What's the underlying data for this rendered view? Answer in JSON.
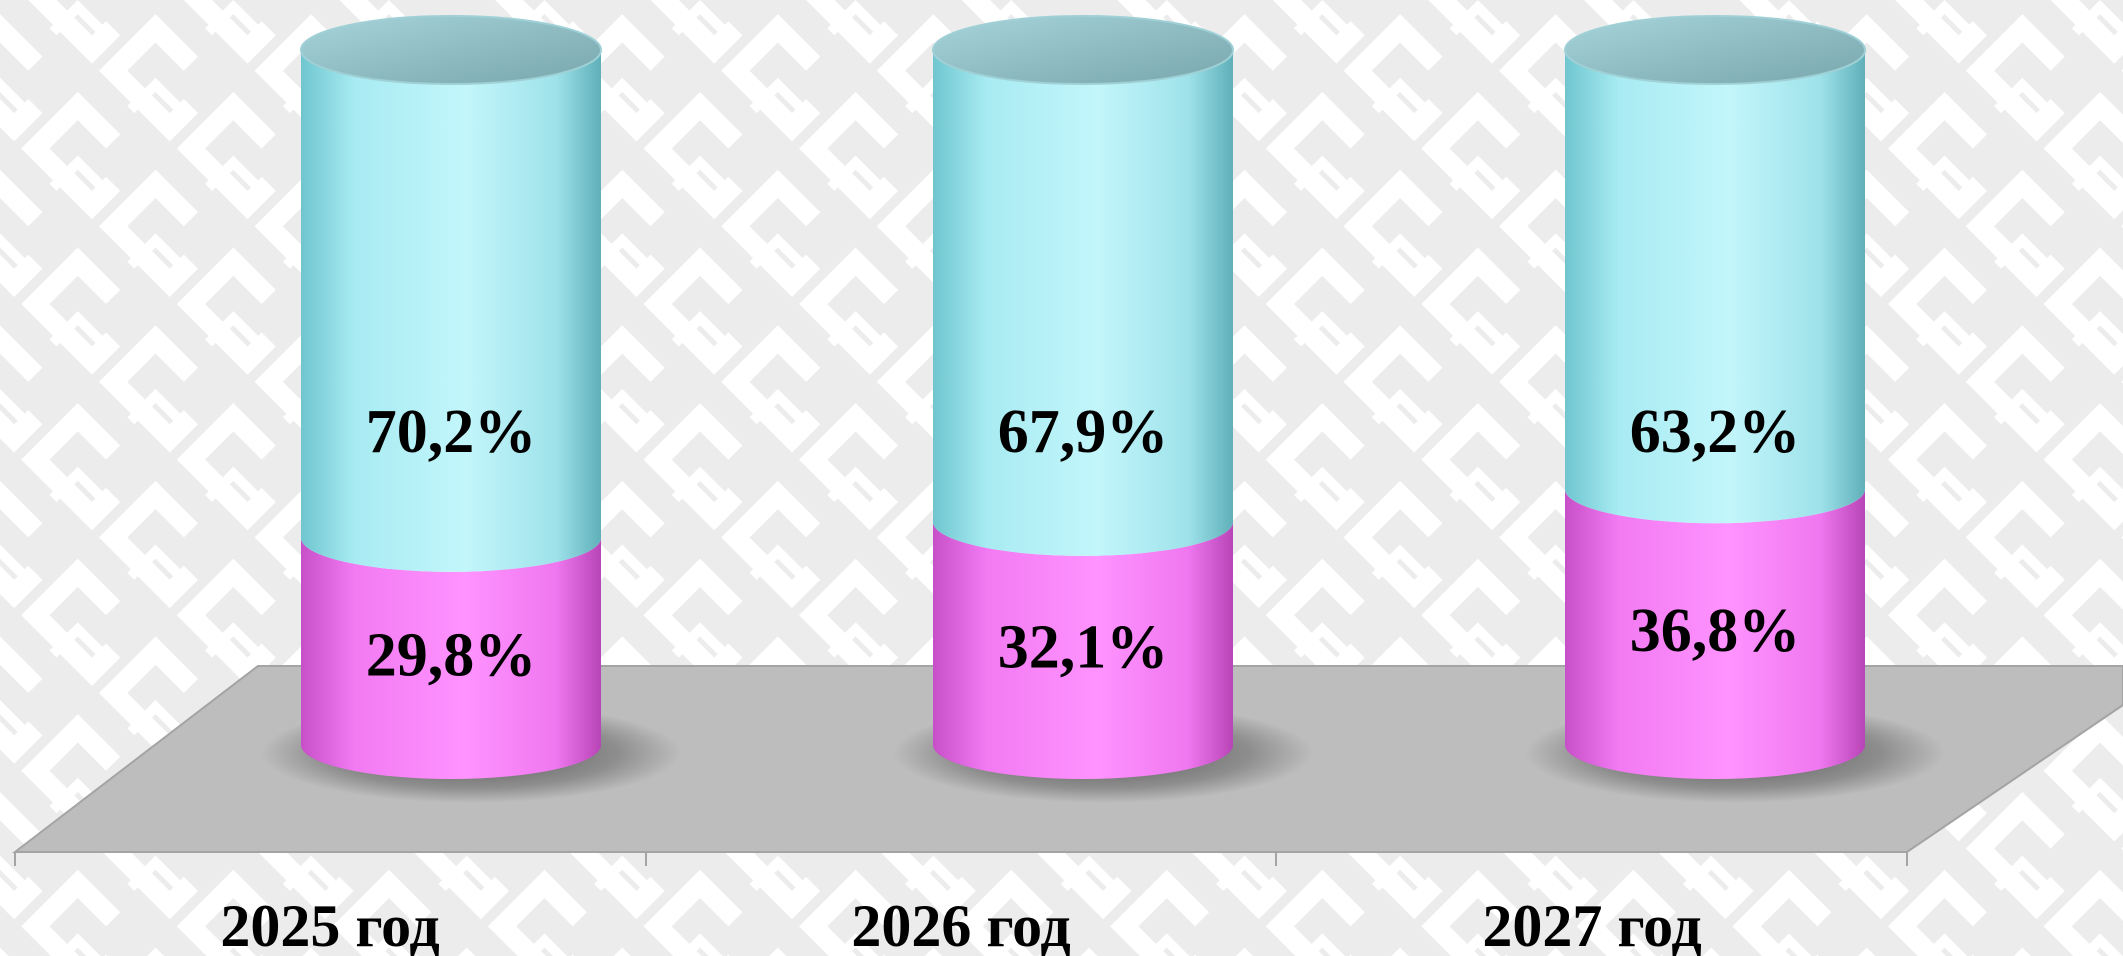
{
  "chart_data": {
    "type": "bar",
    "stacked": true,
    "style": "3d-cylinder",
    "categories": [
      "2025 год",
      "2026 год",
      "2027 год"
    ],
    "series": [
      {
        "values": [
          29.8,
          32.1,
          36.8
        ],
        "labels": [
          "29,8%",
          "32,1%",
          "36,8%"
        ],
        "color": "#f683f6"
      },
      {
        "values": [
          70.2,
          67.9,
          63.2
        ],
        "labels": [
          "70,2%",
          "67,9%",
          "63,2%"
        ],
        "color": "#b3f0f7"
      }
    ],
    "title": "",
    "xlabel": "",
    "ylabel": "",
    "ylim": [
      0,
      100
    ],
    "legend": "none",
    "grid": false,
    "colors": {
      "background": "#f1f1f1",
      "pattern": "#ffffff",
      "floor": "#bdbdbd",
      "cyan_side": "#b3f0f7",
      "cyan_top": "#8fbcc3",
      "pink_side": "#f683f6"
    }
  }
}
